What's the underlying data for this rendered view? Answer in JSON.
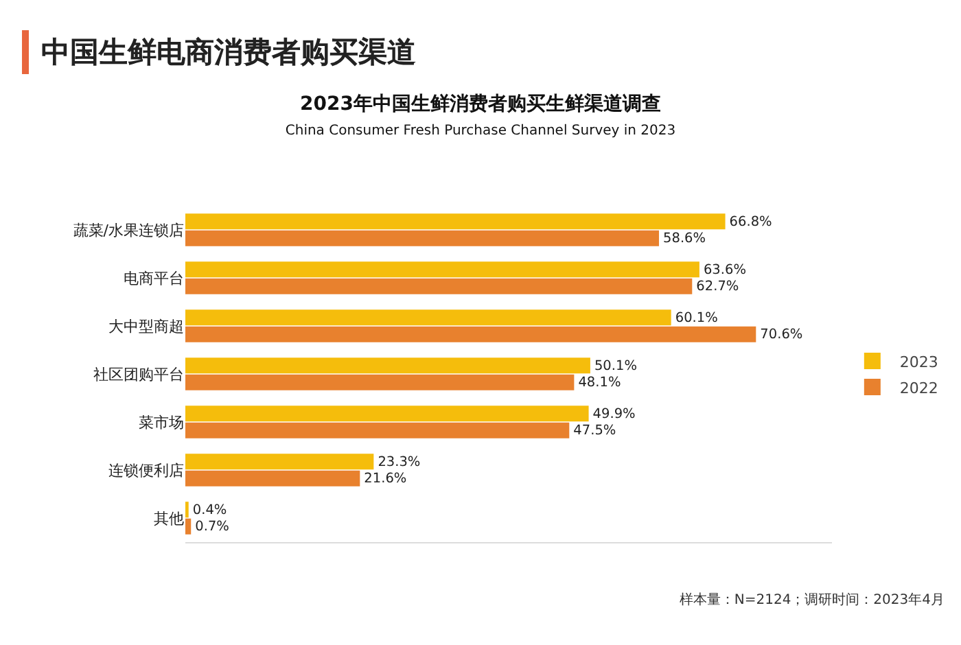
{
  "chart_data": {
    "type": "bar",
    "orientation": "horizontal",
    "title": "2023年中国生鲜消费者购买生鲜渠道调查",
    "subtitle": "China Consumer Fresh Purchase Channel Survey in 2023",
    "categories": [
      "蔬菜/水果连锁店",
      "电商平台",
      "大中型商超",
      "社区团购平台",
      "菜市场",
      "连锁便利店",
      "其他"
    ],
    "series": [
      {
        "name": "2023",
        "color": "#f5bd0c",
        "values": [
          66.8,
          63.6,
          60.1,
          50.1,
          49.9,
          23.3,
          0.4
        ],
        "value_labels": [
          "66.8%",
          "63.6%",
          "60.1%",
          "50.1%",
          "49.9%",
          "23.3%",
          "0.4%"
        ]
      },
      {
        "name": "2022",
        "color": "#e8812e",
        "values": [
          58.6,
          62.7,
          70.6,
          48.1,
          47.5,
          21.6,
          0.7
        ],
        "value_labels": [
          "58.6%",
          "62.7%",
          "70.6%",
          "48.1%",
          "47.5%",
          "21.6%",
          "0.7%"
        ]
      }
    ],
    "legend": "right",
    "grid": false,
    "annotations": [
      "中国生鲜电商消费者购买渠道",
      "样本量：N=2124；调研时间：2023年4月"
    ]
  }
}
